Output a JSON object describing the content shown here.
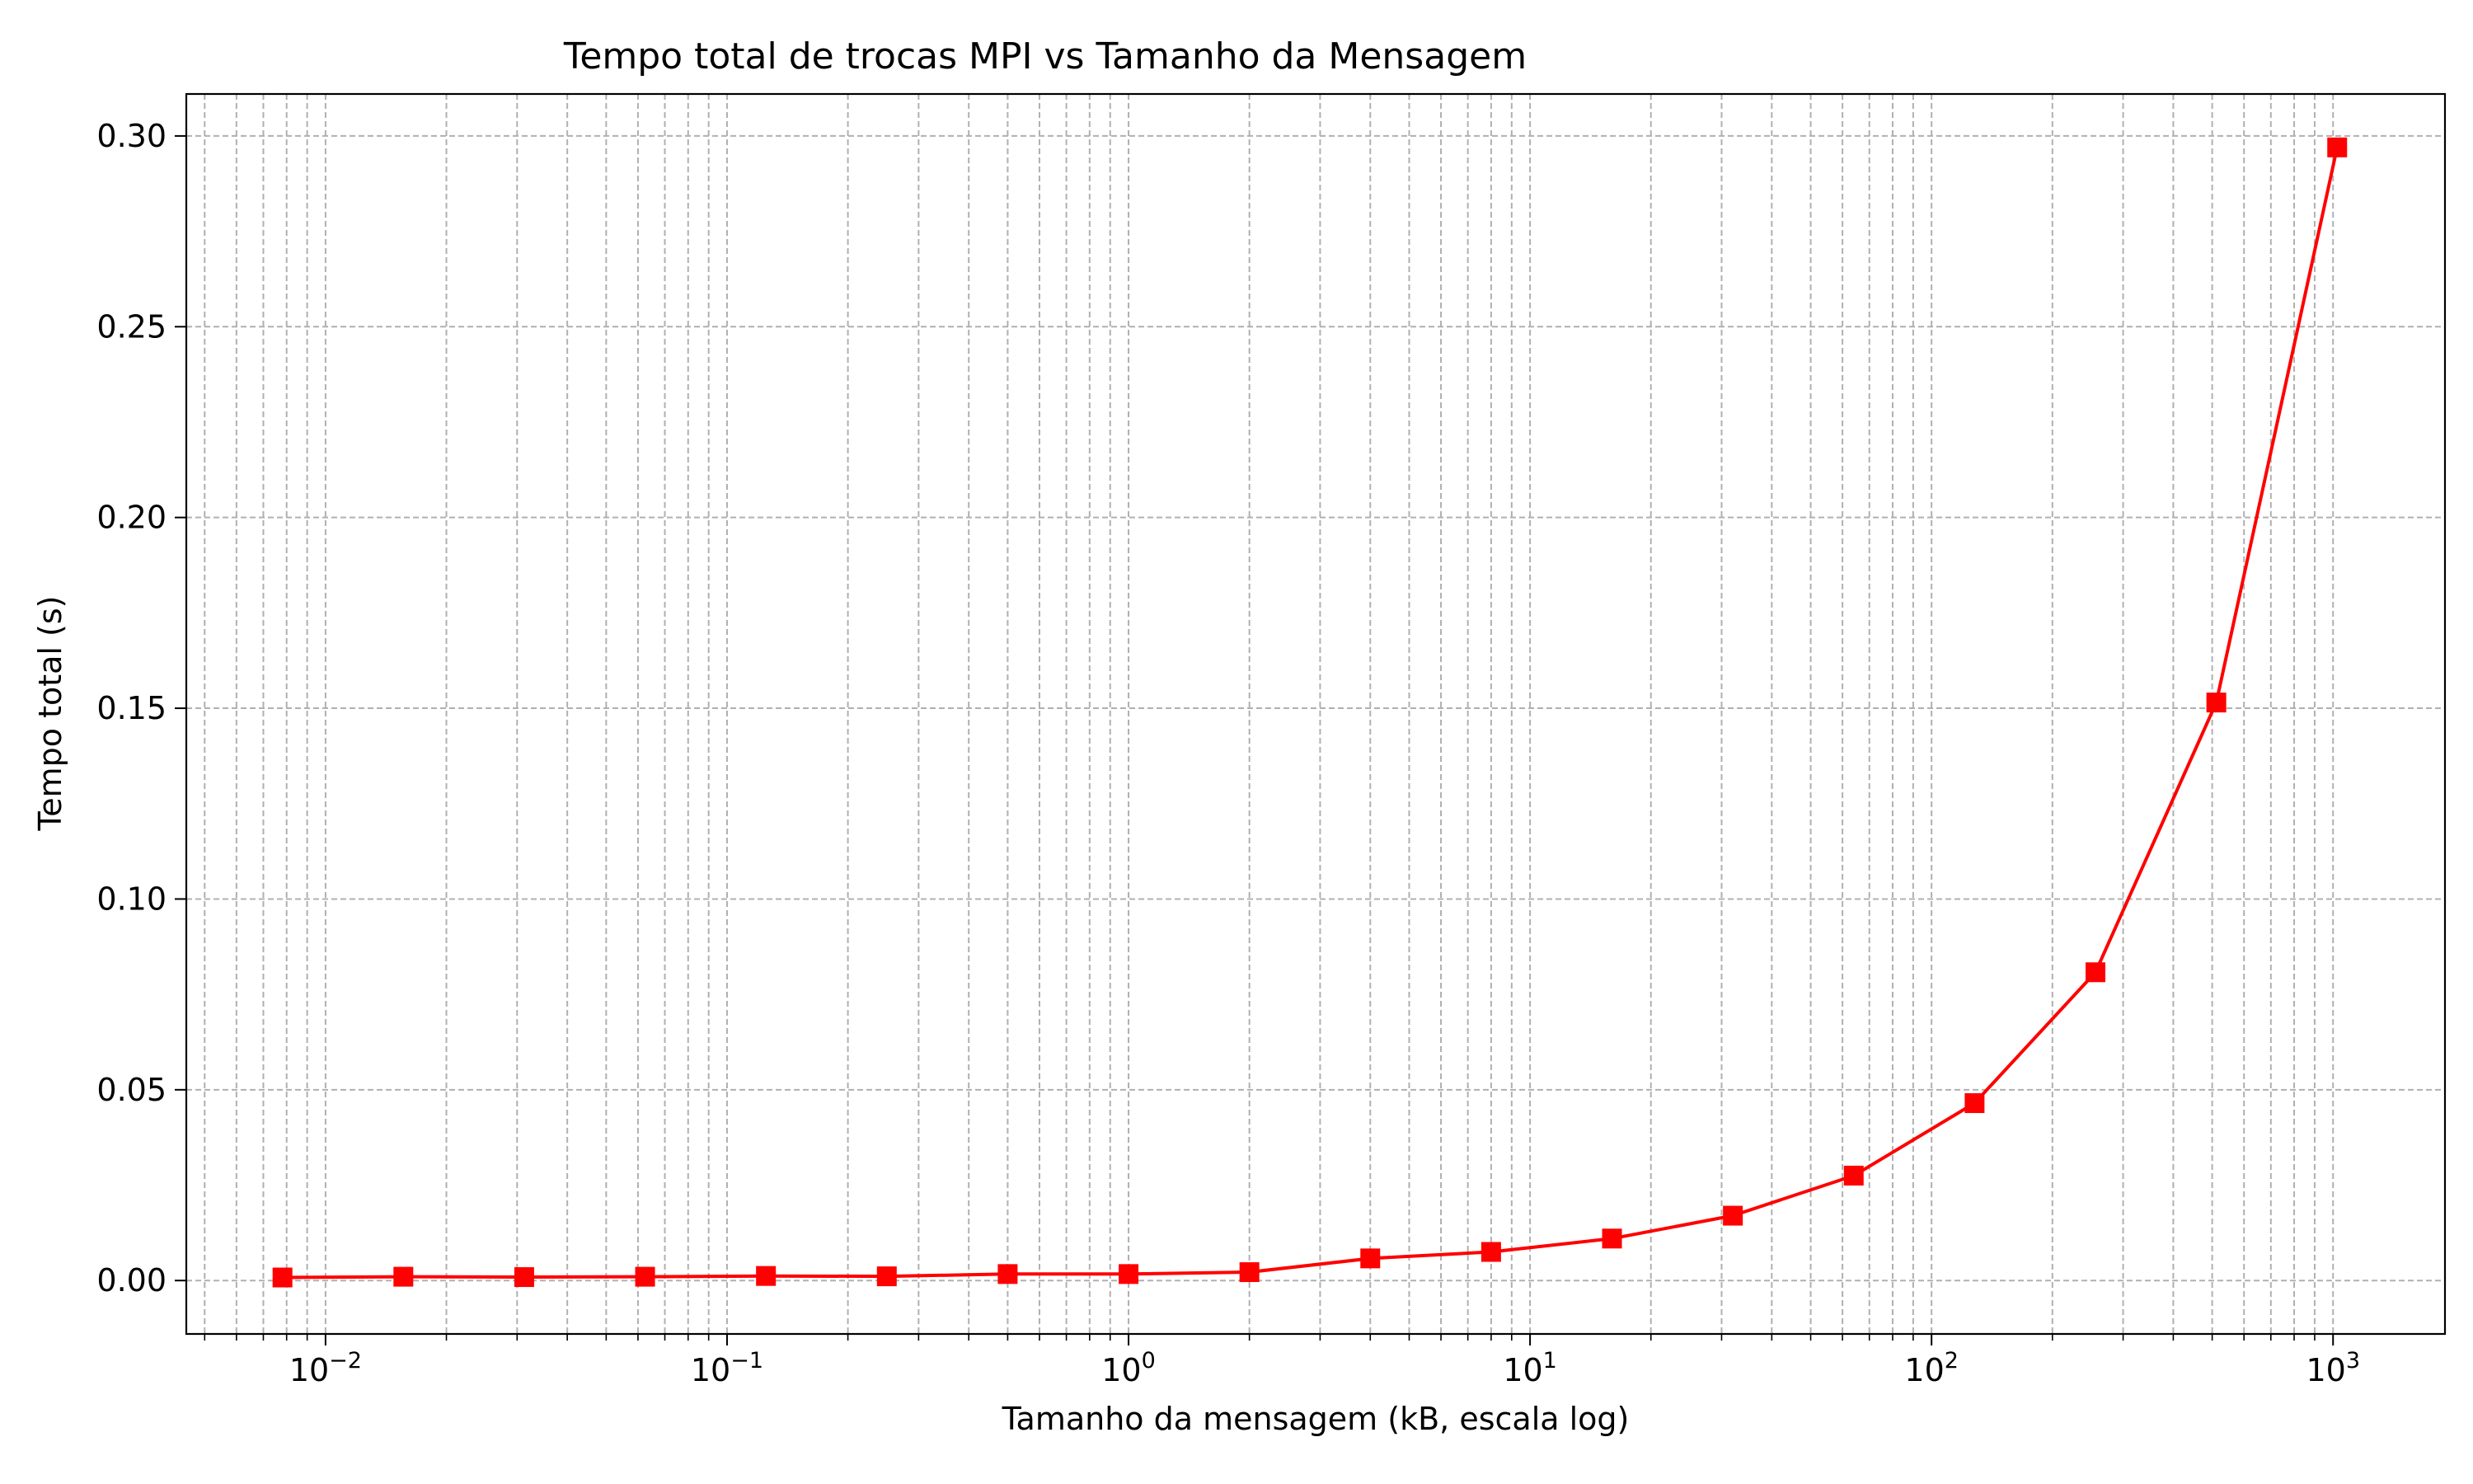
{
  "chart_data": {
    "type": "line",
    "title": "Tempo total de trocas MPI vs Tamanho da Mensagem",
    "xlabel": "Tamanho da mensagem (kB, escala log)",
    "ylabel": "Tempo total (s)",
    "x_scale": "log",
    "xlim": [
      0.0045,
      1900
    ],
    "ylim": [
      -0.014,
      0.311
    ],
    "grid": true,
    "grid_style": "dashed",
    "x_ticks": [
      {
        "value": 0.01,
        "base": "10",
        "exp": "−2"
      },
      {
        "value": 0.1,
        "base": "10",
        "exp": "−1"
      },
      {
        "value": 1,
        "base": "10",
        "exp": "0"
      },
      {
        "value": 10,
        "base": "10",
        "exp": "1"
      },
      {
        "value": 100,
        "base": "10",
        "exp": "2"
      },
      {
        "value": 1000,
        "base": "10",
        "exp": "3"
      }
    ],
    "y_ticks": [
      {
        "value": 0.0,
        "label": "0.00"
      },
      {
        "value": 0.05,
        "label": "0.05"
      },
      {
        "value": 0.1,
        "label": "0.10"
      },
      {
        "value": 0.15,
        "label": "0.15"
      },
      {
        "value": 0.2,
        "label": "0.20"
      },
      {
        "value": 0.25,
        "label": "0.25"
      },
      {
        "value": 0.3,
        "label": "0.30"
      }
    ],
    "series": [
      {
        "color": "#ff0000",
        "marker": "square",
        "x": [
          0.0078125,
          0.015625,
          0.03125,
          0.0625,
          0.125,
          0.25,
          0.5,
          1,
          2,
          4,
          8,
          16,
          32,
          64,
          128,
          256,
          512,
          1024
        ],
        "y": [
          0.0008,
          0.001,
          0.0009,
          0.001,
          0.0012,
          0.0011,
          0.0017,
          0.0017,
          0.0022,
          0.0058,
          0.0075,
          0.011,
          0.017,
          0.0275,
          0.0465,
          0.0808,
          0.1515,
          0.297
        ]
      }
    ]
  }
}
